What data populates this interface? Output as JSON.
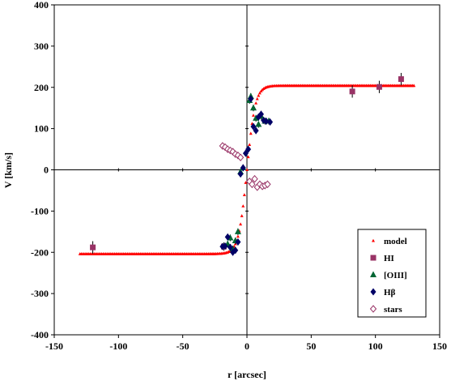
{
  "chart_data": {
    "type": "scatter",
    "title": "",
    "xlabel": "r [arcsec]",
    "ylabel": "V [km/s]",
    "xlim": [
      -150,
      150
    ],
    "ylim": [
      -400,
      400
    ],
    "xticks": [
      -150,
      -100,
      -50,
      0,
      50,
      100,
      150
    ],
    "yticks": [
      -400,
      -300,
      -200,
      -100,
      0,
      100,
      200,
      300,
      400
    ],
    "grid": false,
    "legend_position": "bottom-right",
    "series": [
      {
        "name": "model",
        "marker": "small-triangle",
        "color": "#ff0000",
        "model": {
          "vmax": 204,
          "r_scale": 6.5,
          "x_min": -130,
          "x_max": 130,
          "step": 1
        }
      },
      {
        "name": "HI",
        "marker": "square",
        "color": "#993366",
        "x": [
          -120,
          -18,
          82,
          103,
          120
        ],
        "y": [
          -188,
          -186,
          190,
          201,
          220
        ],
        "yerr": [
          15,
          10,
          15,
          15,
          15
        ]
      },
      {
        "name": "[OIII]",
        "marker": "triangle",
        "color": "#006633",
        "x": [
          -15,
          -13,
          -11,
          -9,
          -7,
          -5,
          -3,
          2,
          3,
          5,
          7,
          9,
          11,
          14,
          17
        ],
        "y": [
          -180,
          -165,
          -192,
          -172,
          -150,
          -5,
          5,
          168,
          178,
          150,
          125,
          110,
          130,
          118,
          118
        ],
        "yerr": [
          8,
          8,
          8,
          8,
          8,
          8,
          8,
          8,
          8,
          8,
          8,
          8,
          8,
          8,
          8
        ]
      },
      {
        "name": "Hβ",
        "marker": "diamond",
        "color": "#000066",
        "x": [
          -19,
          -17,
          -15,
          -13,
          -11,
          -9,
          -7,
          -5,
          -3,
          -1,
          1,
          3,
          5,
          7,
          9,
          11,
          13,
          15,
          18
        ],
        "y": [
          -186,
          -185,
          -163,
          -188,
          -200,
          -195,
          -175,
          -10,
          5,
          40,
          50,
          172,
          105,
          95,
          128,
          135,
          120,
          118,
          116
        ],
        "yerr": [
          8,
          8,
          8,
          8,
          8,
          8,
          8,
          8,
          8,
          8,
          8,
          8,
          8,
          8,
          8,
          8,
          8,
          8,
          8
        ]
      },
      {
        "name": "stars",
        "marker": "open-diamond",
        "color": "#993366",
        "x": [
          -19,
          -17,
          -15,
          -13,
          -11,
          -9,
          -7,
          -5,
          2,
          4,
          6,
          8,
          10,
          12,
          14,
          16
        ],
        "y": [
          58,
          55,
          50,
          47,
          44,
          38,
          35,
          30,
          -28,
          -35,
          -22,
          -42,
          -35,
          -40,
          -38,
          -35
        ]
      }
    ]
  }
}
